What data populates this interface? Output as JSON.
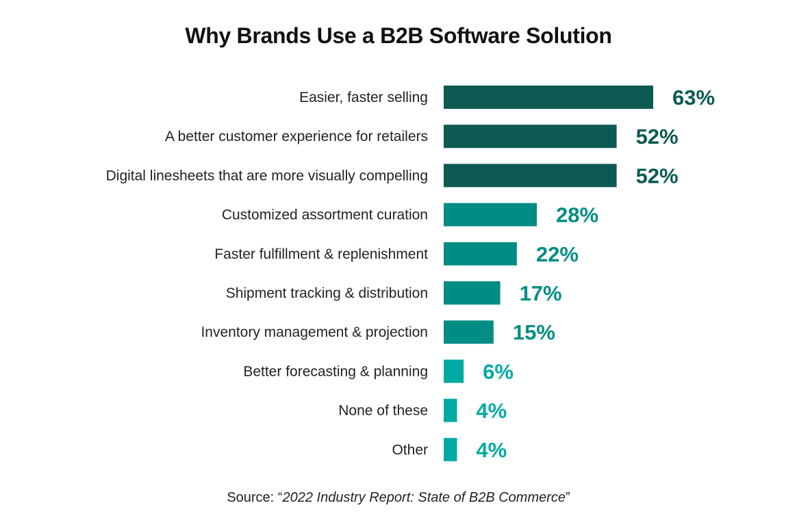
{
  "chart_data": {
    "type": "bar",
    "orientation": "horizontal",
    "title": "Why Brands Use a B2B Software Solution",
    "categories": [
      "Easier, faster selling",
      "A better customer experience for retailers",
      "Digital linesheets that are more visually compelling",
      "Customized assortment curation",
      "Faster fulfillment & replenishment",
      "Shipment tracking & distribution",
      "Inventory management & projection",
      "Better forecasting & planning",
      "None of these",
      "Other"
    ],
    "values": [
      63,
      52,
      52,
      28,
      22,
      17,
      15,
      6,
      4,
      4
    ],
    "value_labels": [
      "63%",
      "52%",
      "52%",
      "28%",
      "22%",
      "17%",
      "15%",
      "6%",
      "4%",
      "4%"
    ],
    "bar_colors": [
      "#0c5a52",
      "#0c5a52",
      "#0c5a52",
      "#008d85",
      "#008d85",
      "#008d85",
      "#008d85",
      "#00aaa3",
      "#00aaa3",
      "#00aaa3"
    ],
    "xlim": [
      0,
      63
    ],
    "xlabel": "",
    "ylabel": "",
    "grid": false,
    "legend": "none"
  },
  "source": {
    "prefix": "Source: “",
    "report": "2022 Industry Report: State of B2B Commerce",
    "suffix": "”"
  }
}
